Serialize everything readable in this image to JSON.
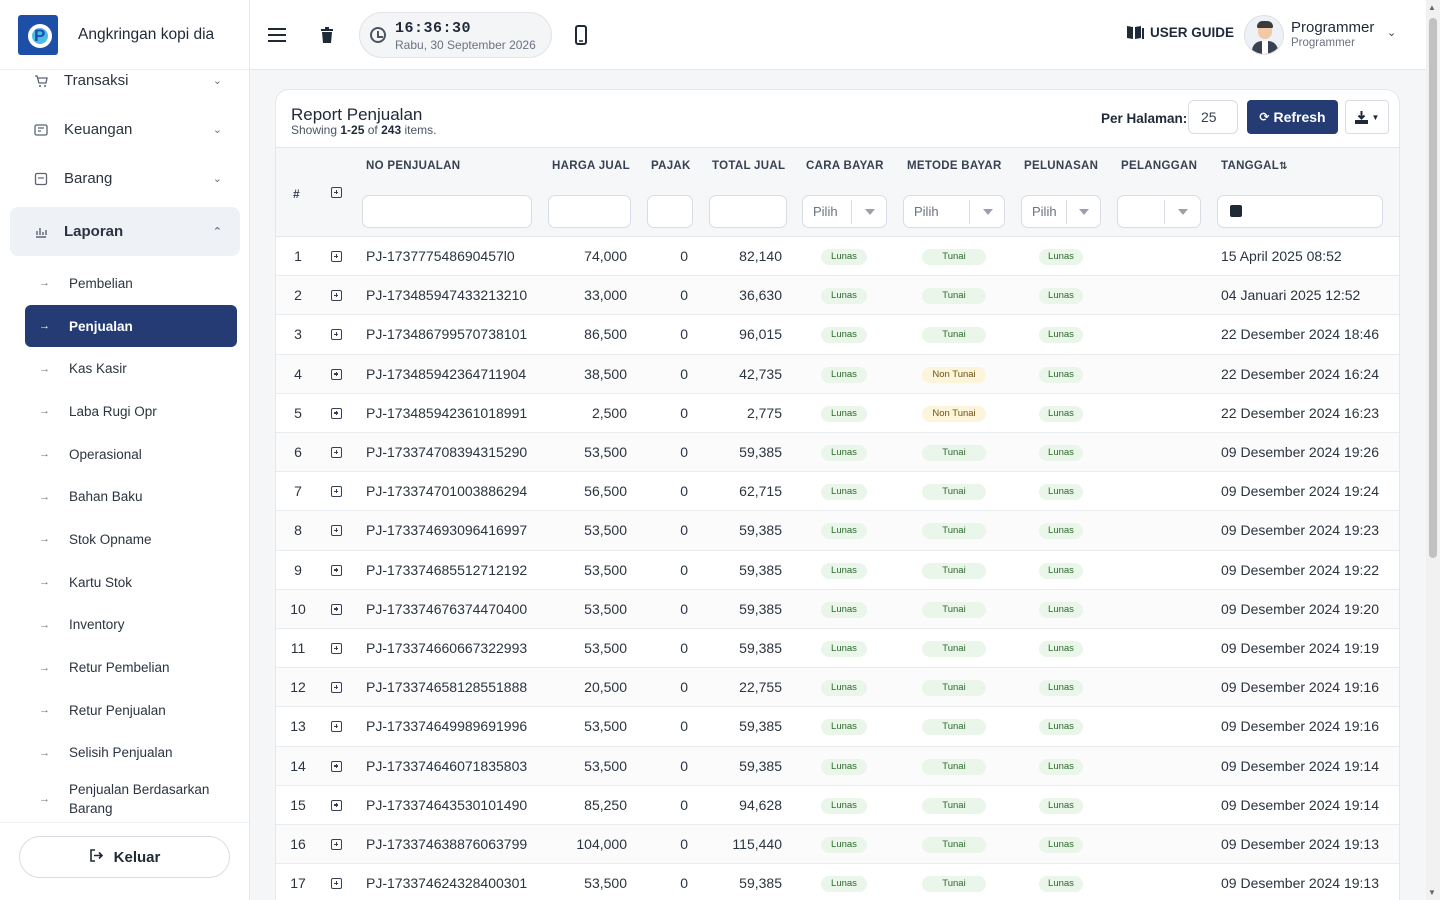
{
  "brand": {
    "name": "Angkringan kopi dia"
  },
  "sidebar": {
    "top_items": [
      {
        "label": "Transaksi",
        "icon": "cart-icon"
      },
      {
        "label": "Keuangan",
        "icon": "wallet-icon"
      },
      {
        "label": "Barang",
        "icon": "box-icon"
      },
      {
        "label": "Laporan",
        "icon": "chart-icon"
      }
    ],
    "sub_items": [
      "Pembelian",
      "Penjualan",
      "Kas Kasir",
      "Laba Rugi Opr",
      "Operasional",
      "Bahan Baku",
      "Stok Opname",
      "Kartu Stok",
      "Inventory",
      "Retur Pembelian",
      "Retur Penjualan",
      "Selisih Penjualan",
      "Penjualan Berdasarkan Barang"
    ],
    "active_sub": "Penjualan",
    "logout_label": "Keluar"
  },
  "topbar": {
    "time": "16:36:30",
    "date": "Rabu, 30 September 2026",
    "guide_label": "USER GUIDE",
    "user_name": "Programmer",
    "user_role": "Programmer"
  },
  "report": {
    "title": "Report Penjualan",
    "showing_prefix": "Showing ",
    "showing_range": "1-25",
    "showing_mid": " of ",
    "showing_total": "243",
    "showing_suffix": " items.",
    "per_page_label": "Per Halaman:",
    "per_page_value": "25",
    "refresh_label": "Refresh"
  },
  "table": {
    "headers": {
      "hash": "#",
      "no": "NO PENJUALAN",
      "harga": "HARGA JUAL",
      "pajak": "PAJAK",
      "total": "TOTAL JUAL",
      "cara": "CARA BAYAR",
      "metode": "METODE BAYAR",
      "pelunasan": "PELUNASAN",
      "pelanggan": "PELANGGAN",
      "tanggal": "TANGGAL"
    },
    "filter_placeholder": "Pilih",
    "rows": [
      {
        "idx": "1",
        "no": "PJ-173777548690457l0",
        "harga": "74,000",
        "pajak": "0",
        "total": "82,140",
        "cara": "Lunas",
        "metode": "Tunai",
        "pelunasan": "Lunas",
        "tanggal": "15 April 2025 08:52"
      },
      {
        "idx": "2",
        "no": "PJ-173485947433213210",
        "harga": "33,000",
        "pajak": "0",
        "total": "36,630",
        "cara": "Lunas",
        "metode": "Tunai",
        "pelunasan": "Lunas",
        "tanggal": "04 Januari 2025 12:52"
      },
      {
        "idx": "3",
        "no": "PJ-173486799570738101",
        "harga": "86,500",
        "pajak": "0",
        "total": "96,015",
        "cara": "Lunas",
        "metode": "Tunai",
        "pelunasan": "Lunas",
        "tanggal": "22 Desember 2024 18:46"
      },
      {
        "idx": "4",
        "no": "PJ-173485942364711904",
        "harga": "38,500",
        "pajak": "0",
        "total": "42,735",
        "cara": "Lunas",
        "metode": "Non Tunai",
        "pelunasan": "Lunas",
        "tanggal": "22 Desember 2024 16:24"
      },
      {
        "idx": "5",
        "no": "PJ-173485942361018991",
        "harga": "2,500",
        "pajak": "0",
        "total": "2,775",
        "cara": "Lunas",
        "metode": "Non Tunai",
        "pelunasan": "Lunas",
        "tanggal": "22 Desember 2024 16:23"
      },
      {
        "idx": "6",
        "no": "PJ-173374708394315290",
        "harga": "53,500",
        "pajak": "0",
        "total": "59,385",
        "cara": "Lunas",
        "metode": "Tunai",
        "pelunasan": "Lunas",
        "tanggal": "09 Desember 2024 19:26"
      },
      {
        "idx": "7",
        "no": "PJ-173374701003886294",
        "harga": "56,500",
        "pajak": "0",
        "total": "62,715",
        "cara": "Lunas",
        "metode": "Tunai",
        "pelunasan": "Lunas",
        "tanggal": "09 Desember 2024 19:24"
      },
      {
        "idx": "8",
        "no": "PJ-173374693096416997",
        "harga": "53,500",
        "pajak": "0",
        "total": "59,385",
        "cara": "Lunas",
        "metode": "Tunai",
        "pelunasan": "Lunas",
        "tanggal": "09 Desember 2024 19:23"
      },
      {
        "idx": "9",
        "no": "PJ-173374685512712192",
        "harga": "53,500",
        "pajak": "0",
        "total": "59,385",
        "cara": "Lunas",
        "metode": "Tunai",
        "pelunasan": "Lunas",
        "tanggal": "09 Desember 2024 19:22"
      },
      {
        "idx": "10",
        "no": "PJ-173374676374470400",
        "harga": "53,500",
        "pajak": "0",
        "total": "59,385",
        "cara": "Lunas",
        "metode": "Tunai",
        "pelunasan": "Lunas",
        "tanggal": "09 Desember 2024 19:20"
      },
      {
        "idx": "11",
        "no": "PJ-173374660667322993",
        "harga": "53,500",
        "pajak": "0",
        "total": "59,385",
        "cara": "Lunas",
        "metode": "Tunai",
        "pelunasan": "Lunas",
        "tanggal": "09 Desember 2024 19:19"
      },
      {
        "idx": "12",
        "no": "PJ-173374658128551888",
        "harga": "20,500",
        "pajak": "0",
        "total": "22,755",
        "cara": "Lunas",
        "metode": "Tunai",
        "pelunasan": "Lunas",
        "tanggal": "09 Desember 2024 19:16"
      },
      {
        "idx": "13",
        "no": "PJ-173374649989691996",
        "harga": "53,500",
        "pajak": "0",
        "total": "59,385",
        "cara": "Lunas",
        "metode": "Tunai",
        "pelunasan": "Lunas",
        "tanggal": "09 Desember 2024 19:16"
      },
      {
        "idx": "14",
        "no": "PJ-173374646071835803",
        "harga": "53,500",
        "pajak": "0",
        "total": "59,385",
        "cara": "Lunas",
        "metode": "Tunai",
        "pelunasan": "Lunas",
        "tanggal": "09 Desember 2024 19:14"
      },
      {
        "idx": "15",
        "no": "PJ-173374643530101490",
        "harga": "85,250",
        "pajak": "0",
        "total": "94,628",
        "cara": "Lunas",
        "metode": "Tunai",
        "pelunasan": "Lunas",
        "tanggal": "09 Desember 2024 19:14"
      },
      {
        "idx": "16",
        "no": "PJ-173374638876063799",
        "harga": "104,000",
        "pajak": "0",
        "total": "115,440",
        "cara": "Lunas",
        "metode": "Tunai",
        "pelunasan": "Lunas",
        "tanggal": "09 Desember 2024 19:13"
      },
      {
        "idx": "17",
        "no": "PJ-173374624328400301",
        "harga": "53,500",
        "pajak": "0",
        "total": "59,385",
        "cara": "Lunas",
        "metode": "Tunai",
        "pelunasan": "Lunas",
        "tanggal": "09 Desember 2024 19:13"
      }
    ]
  }
}
